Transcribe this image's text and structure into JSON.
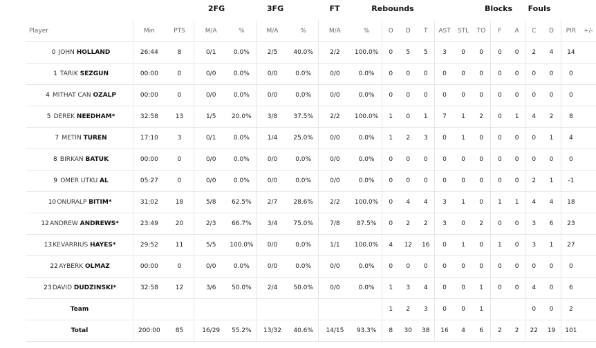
{
  "group_headers": {
    "fg2": "2FG",
    "fg3": "3FG",
    "ft": "FT",
    "rebounds": "Rebounds",
    "blocks": "Blocks",
    "fouls": "Fouls"
  },
  "columns": {
    "player": "Player",
    "min": "Min",
    "pts": "PTS",
    "fg2_ma": "M/A",
    "fg2_pct": "%",
    "fg3_ma": "M/A",
    "fg3_pct": "%",
    "ft_ma": "M/A",
    "ft_pct": "%",
    "o": "O",
    "d": "D",
    "t": "T",
    "ast": "AST",
    "stl": "STL",
    "to": "TO",
    "f": "F",
    "a": "A",
    "c": "C",
    "dfoul": "D",
    "pir": "PIR",
    "pm": "+/-"
  },
  "players": [
    {
      "num": "0",
      "first": "JOHN",
      "last": "HOLLAND",
      "starter": "",
      "min": "26:44",
      "pts": "8",
      "fg2_ma": "0/1",
      "fg2_pct": "0.0%",
      "fg3_ma": "2/5",
      "fg3_pct": "40.0%",
      "ft_ma": "2/2",
      "ft_pct": "100.0%",
      "o": "0",
      "d": "5",
      "t": "5",
      "ast": "3",
      "stl": "0",
      "to": "0",
      "f": "0",
      "a": "0",
      "c": "2",
      "dfoul": "4",
      "pir": "14",
      "pm": ""
    },
    {
      "num": "1",
      "first": "TARIK",
      "last": "SEZGUN",
      "starter": "",
      "min": "00:00",
      "pts": "0",
      "fg2_ma": "0/0",
      "fg2_pct": "0.0%",
      "fg3_ma": "0/0",
      "fg3_pct": "0.0%",
      "ft_ma": "0/0",
      "ft_pct": "0.0%",
      "o": "0",
      "d": "0",
      "t": "0",
      "ast": "0",
      "stl": "0",
      "to": "0",
      "f": "0",
      "a": "0",
      "c": "0",
      "dfoul": "0",
      "pir": "0",
      "pm": ""
    },
    {
      "num": "4",
      "first": "MITHAT CAN",
      "last": "OZALP",
      "starter": "",
      "min": "00:00",
      "pts": "0",
      "fg2_ma": "0/0",
      "fg2_pct": "0.0%",
      "fg3_ma": "0/0",
      "fg3_pct": "0.0%",
      "ft_ma": "0/0",
      "ft_pct": "0.0%",
      "o": "0",
      "d": "0",
      "t": "0",
      "ast": "0",
      "stl": "0",
      "to": "0",
      "f": "0",
      "a": "0",
      "c": "0",
      "dfoul": "0",
      "pir": "0",
      "pm": ""
    },
    {
      "num": "5",
      "first": "DEREK",
      "last": "NEEDHAM",
      "starter": "*",
      "min": "32:58",
      "pts": "13",
      "fg2_ma": "1/5",
      "fg2_pct": "20.0%",
      "fg3_ma": "3/8",
      "fg3_pct": "37.5%",
      "ft_ma": "2/2",
      "ft_pct": "100.0%",
      "o": "1",
      "d": "0",
      "t": "1",
      "ast": "7",
      "stl": "1",
      "to": "2",
      "f": "0",
      "a": "1",
      "c": "4",
      "dfoul": "2",
      "pir": "8",
      "pm": ""
    },
    {
      "num": "7",
      "first": "METIN",
      "last": "TUREN",
      "starter": "",
      "min": "17:10",
      "pts": "3",
      "fg2_ma": "0/1",
      "fg2_pct": "0.0%",
      "fg3_ma": "1/4",
      "fg3_pct": "25.0%",
      "ft_ma": "0/0",
      "ft_pct": "0.0%",
      "o": "1",
      "d": "2",
      "t": "3",
      "ast": "0",
      "stl": "1",
      "to": "0",
      "f": "0",
      "a": "0",
      "c": "0",
      "dfoul": "1",
      "pir": "4",
      "pm": ""
    },
    {
      "num": "8",
      "first": "BIRKAN",
      "last": "BATUK",
      "starter": "",
      "min": "00:00",
      "pts": "0",
      "fg2_ma": "0/0",
      "fg2_pct": "0.0%",
      "fg3_ma": "0/0",
      "fg3_pct": "0.0%",
      "ft_ma": "0/0",
      "ft_pct": "0.0%",
      "o": "0",
      "d": "0",
      "t": "0",
      "ast": "0",
      "stl": "0",
      "to": "0",
      "f": "0",
      "a": "0",
      "c": "0",
      "dfoul": "0",
      "pir": "0",
      "pm": ""
    },
    {
      "num": "9",
      "first": "OMER UTKU",
      "last": "AL",
      "starter": "",
      "min": "05:27",
      "pts": "0",
      "fg2_ma": "0/0",
      "fg2_pct": "0.0%",
      "fg3_ma": "0/0",
      "fg3_pct": "0.0%",
      "ft_ma": "0/0",
      "ft_pct": "0.0%",
      "o": "0",
      "d": "0",
      "t": "0",
      "ast": "0",
      "stl": "0",
      "to": "0",
      "f": "0",
      "a": "0",
      "c": "2",
      "dfoul": "1",
      "pir": "-1",
      "pm": ""
    },
    {
      "num": "10",
      "first": "ONURALP",
      "last": "BITIM",
      "starter": "*",
      "min": "31:02",
      "pts": "18",
      "fg2_ma": "5/8",
      "fg2_pct": "62.5%",
      "fg3_ma": "2/7",
      "fg3_pct": "28.6%",
      "ft_ma": "2/2",
      "ft_pct": "100.0%",
      "o": "0",
      "d": "4",
      "t": "4",
      "ast": "3",
      "stl": "1",
      "to": "0",
      "f": "1",
      "a": "1",
      "c": "4",
      "dfoul": "4",
      "pir": "18",
      "pm": ""
    },
    {
      "num": "12",
      "first": "ANDREW",
      "last": "ANDREWS",
      "starter": "*",
      "min": "23:49",
      "pts": "20",
      "fg2_ma": "2/3",
      "fg2_pct": "66.7%",
      "fg3_ma": "3/4",
      "fg3_pct": "75.0%",
      "ft_ma": "7/8",
      "ft_pct": "87.5%",
      "o": "0",
      "d": "2",
      "t": "2",
      "ast": "3",
      "stl": "0",
      "to": "2",
      "f": "0",
      "a": "0",
      "c": "3",
      "dfoul": "6",
      "pir": "23",
      "pm": ""
    },
    {
      "num": "13",
      "first": "KEVARRIUS",
      "last": "HAYES",
      "starter": "*",
      "min": "29:52",
      "pts": "11",
      "fg2_ma": "5/5",
      "fg2_pct": "100.0%",
      "fg3_ma": "0/0",
      "fg3_pct": "0.0%",
      "ft_ma": "1/1",
      "ft_pct": "100.0%",
      "o": "4",
      "d": "12",
      "t": "16",
      "ast": "0",
      "stl": "1",
      "to": "0",
      "f": "1",
      "a": "0",
      "c": "3",
      "dfoul": "1",
      "pir": "27",
      "pm": ""
    },
    {
      "num": "22",
      "first": "AYBERK",
      "last": "OLMAZ",
      "starter": "",
      "min": "00:00",
      "pts": "0",
      "fg2_ma": "0/0",
      "fg2_pct": "0.0%",
      "fg3_ma": "0/0",
      "fg3_pct": "0.0%",
      "ft_ma": "0/0",
      "ft_pct": "0.0%",
      "o": "0",
      "d": "0",
      "t": "0",
      "ast": "0",
      "stl": "0",
      "to": "0",
      "f": "0",
      "a": "0",
      "c": "0",
      "dfoul": "0",
      "pir": "0",
      "pm": ""
    },
    {
      "num": "23",
      "first": "DAVID",
      "last": "DUDZINSKI",
      "starter": "*",
      "min": "32:58",
      "pts": "12",
      "fg2_ma": "3/6",
      "fg2_pct": "50.0%",
      "fg3_ma": "2/4",
      "fg3_pct": "50.0%",
      "ft_ma": "0/0",
      "ft_pct": "0.0%",
      "o": "1",
      "d": "3",
      "t": "4",
      "ast": "0",
      "stl": "0",
      "to": "1",
      "f": "0",
      "a": "0",
      "c": "4",
      "dfoul": "0",
      "pir": "6",
      "pm": ""
    }
  ],
  "team_row": {
    "label": "Team",
    "min": "",
    "pts": "",
    "fg2_ma": "",
    "fg2_pct": "",
    "fg3_ma": "",
    "fg3_pct": "",
    "ft_ma": "",
    "ft_pct": "",
    "o": "1",
    "d": "2",
    "t": "3",
    "ast": "0",
    "stl": "0",
    "to": "1",
    "f": "",
    "a": "",
    "c": "0",
    "dfoul": "0",
    "pir": "2",
    "pm": ""
  },
  "total_row": {
    "label": "Total",
    "min": "200:00",
    "pts": "85",
    "fg2_ma": "16/29",
    "fg2_pct": "55.2%",
    "fg3_ma": "13/32",
    "fg3_pct": "40.6%",
    "ft_ma": "14/15",
    "ft_pct": "93.3%",
    "o": "8",
    "d": "30",
    "t": "38",
    "ast": "16",
    "stl": "4",
    "to": "6",
    "f": "2",
    "a": "2",
    "c": "22",
    "dfoul": "19",
    "pir": "101",
    "pm": ""
  }
}
